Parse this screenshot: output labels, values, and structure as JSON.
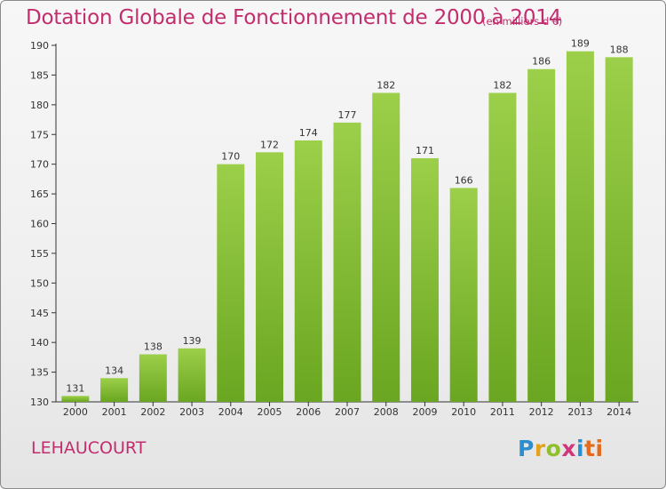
{
  "title": "Dotation Globale de Fonctionnement de 2000 à 2014",
  "subtitle": "(en milliers d'€)",
  "commune": "LEHAUCOURT",
  "logo": {
    "letters": [
      "P",
      "r",
      "o",
      "x",
      "i",
      "ti"
    ],
    "colors": [
      "#2a8fd0",
      "#e3a21b",
      "#8fbf2a",
      "#d2367a",
      "#2a8fd0",
      "#e36b1b"
    ]
  },
  "colors": {
    "bar_light": "#9ccf4a",
    "bar_dark": "#6aa621",
    "title": "#c22d6e",
    "axis": "#333333"
  },
  "chart_data": {
    "type": "bar",
    "title": "Dotation Globale de Fonctionnement de 2000 à 2014",
    "subtitle": "(en milliers d'€)",
    "xlabel": "",
    "ylabel": "",
    "categories": [
      "2000",
      "2001",
      "2002",
      "2003",
      "2004",
      "2005",
      "2006",
      "2007",
      "2008",
      "2009",
      "2010",
      "2011",
      "2012",
      "2013",
      "2014"
    ],
    "values": [
      131,
      134,
      138,
      139,
      170,
      172,
      174,
      177,
      182,
      171,
      166,
      182,
      186,
      189,
      188
    ],
    "ylim": [
      130,
      190
    ],
    "yticks": [
      130,
      135,
      140,
      145,
      150,
      155,
      160,
      165,
      170,
      175,
      180,
      185,
      190
    ],
    "grid": false,
    "data_labels": true
  }
}
